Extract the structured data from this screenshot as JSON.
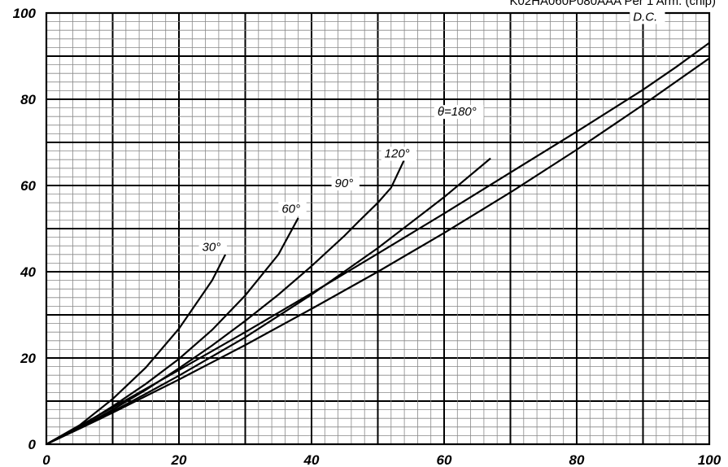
{
  "chart_data": {
    "type": "line",
    "title": "K02HA060P080AAA  Per 1 Arm. (chip)",
    "xlabel": "",
    "ylabel": "",
    "xlim": [
      0,
      100
    ],
    "ylim": [
      0,
      100
    ],
    "x_ticks": [
      "0",
      "20",
      "40",
      "60",
      "80",
      "100"
    ],
    "y_ticks": [
      "0",
      "20",
      "40",
      "60",
      "80",
      "100"
    ],
    "grid": true,
    "series": [
      {
        "name": "30°",
        "points": [
          [
            0,
            0
          ],
          [
            5,
            4.4
          ],
          [
            10,
            10.5
          ],
          [
            15,
            17.8
          ],
          [
            20,
            26.8
          ],
          [
            25,
            38
          ],
          [
            27,
            44
          ]
        ]
      },
      {
        "name": "60°",
        "points": [
          [
            0,
            0
          ],
          [
            5,
            4
          ],
          [
            10,
            8.8
          ],
          [
            15,
            14
          ],
          [
            20,
            19.8
          ],
          [
            25,
            26.5
          ],
          [
            30,
            34.5
          ],
          [
            35,
            44
          ],
          [
            38,
            52.5
          ]
        ]
      },
      {
        "name": "90°",
        "points": [
          [
            0,
            0
          ],
          [
            5,
            3.8
          ],
          [
            10,
            8
          ],
          [
            15,
            12.6
          ],
          [
            20,
            17.6
          ],
          [
            25,
            22.9
          ],
          [
            30,
            28.6
          ],
          [
            35,
            34.7
          ],
          [
            40,
            41.3
          ],
          [
            45,
            48.4
          ],
          [
            47,
            51.5
          ],
          [
            50,
            56
          ],
          [
            52,
            59.5
          ],
          [
            54,
            66
          ]
        ]
      },
      {
        "name": "120°",
        "points": [
          [
            0,
            0
          ],
          [
            5,
            3.7
          ],
          [
            10,
            7.6
          ],
          [
            15,
            11.7
          ],
          [
            20,
            15.9
          ],
          [
            30,
            24.8
          ],
          [
            40,
            34.7
          ],
          [
            50,
            45.5
          ],
          [
            60,
            57.3
          ],
          [
            67,
            66.3
          ]
        ]
      },
      {
        "name": "θ=180°",
        "points": [
          [
            0,
            0
          ],
          [
            5,
            3.6
          ],
          [
            10,
            7.3
          ],
          [
            20,
            15
          ],
          [
            30,
            23
          ],
          [
            40,
            31.4
          ],
          [
            50,
            40
          ],
          [
            60,
            49
          ],
          [
            70,
            58.4
          ],
          [
            80,
            68.3
          ],
          [
            90,
            78.7
          ],
          [
            100,
            89.5
          ],
          [
            106,
            96
          ]
        ]
      },
      {
        "name": "D.C.",
        "points": [
          [
            0,
            0
          ],
          [
            10,
            8.5
          ],
          [
            20,
            17.2
          ],
          [
            30,
            26
          ],
          [
            40,
            35
          ],
          [
            50,
            44.2
          ],
          [
            60,
            53.5
          ],
          [
            70,
            63
          ],
          [
            80,
            72.5
          ],
          [
            90,
            82.2
          ],
          [
            95,
            87.5
          ],
          [
            106,
            99.8
          ]
        ]
      }
    ],
    "curve_labels": [
      "30°",
      "60°",
      "90°",
      "120°",
      "θ=180°",
      "D.C."
    ]
  }
}
